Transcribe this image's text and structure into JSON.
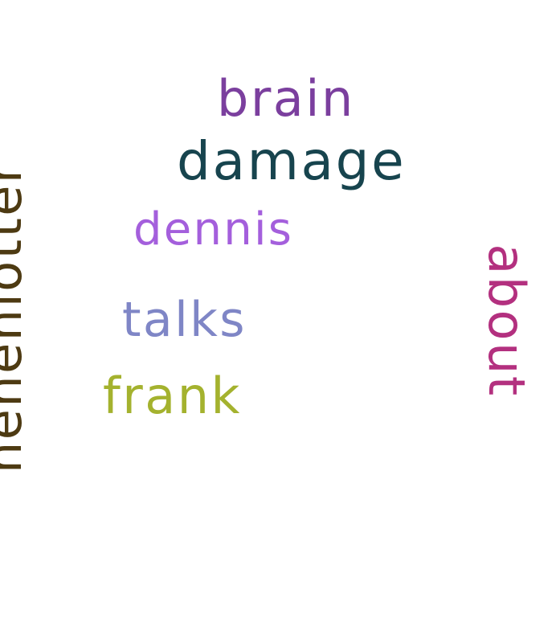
{
  "words": [
    {
      "text": "brain",
      "color": "#7b3f9e"
    },
    {
      "text": "damage",
      "color": "#17444e"
    },
    {
      "text": "dennis",
      "color": "#a45fdc"
    },
    {
      "text": "talks",
      "color": "#7f86c6"
    },
    {
      "text": "frank",
      "color": "#a4b22e"
    },
    {
      "text": "henenlotter",
      "color": "#4d3a12"
    },
    {
      "text": "about",
      "color": "#b3307f"
    }
  ]
}
